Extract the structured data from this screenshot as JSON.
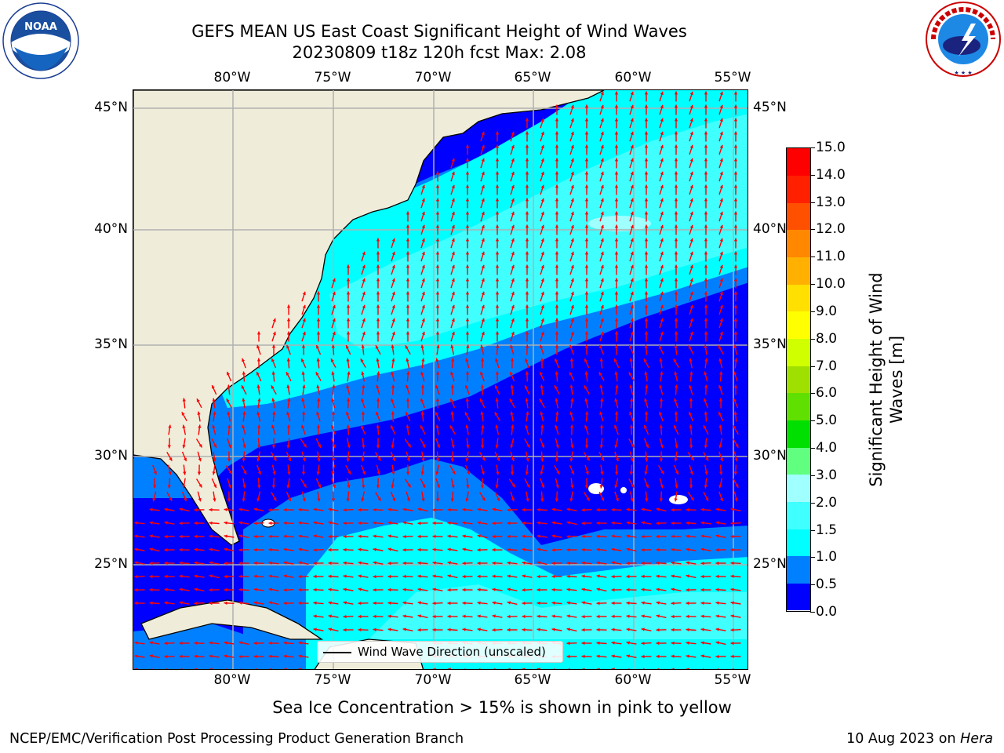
{
  "title": {
    "line1": "GEFS MEAN US East Coast Significant Height of Wind Waves",
    "line2": "20230809 t18z 120h fcst   Max: 2.08"
  },
  "map": {
    "lon_labels": [
      "80°W",
      "75°W",
      "70°W",
      "65°W",
      "60°W",
      "55°W"
    ],
    "lat_labels": [
      "45°N",
      "40°N",
      "35°N",
      "30°N",
      "25°N"
    ],
    "legend_label": "Wind Wave Direction (unscaled)",
    "colors": {
      "land": "#efedda",
      "arrow": "#ff0000",
      "grid": "#b0b0b0",
      "coast": "#000000"
    },
    "max_value": 2.08,
    "lon_range": [
      -85,
      -54.2
    ],
    "lat_range": [
      20.5,
      45.8
    ]
  },
  "colorbar": {
    "label": "Significant Height of Wind Waves [m]",
    "label_lines": [
      "Significant Height of Wind",
      "Waves [m]"
    ],
    "ticks": [
      "0.0",
      "0.5",
      "1.0",
      "1.5",
      "2.0",
      "3.0",
      "4.0",
      "5.0",
      "6.0",
      "7.0",
      "8.0",
      "9.0",
      "10.0",
      "11.0",
      "12.0",
      "13.0",
      "14.0",
      "15.0"
    ],
    "colors": [
      "#0000ff",
      "#0080ff",
      "#00ffff",
      "#40ffff",
      "#a0ffff",
      "#60ff80",
      "#00e000",
      "#60e000",
      "#a0e000",
      "#d0ff00",
      "#ffff00",
      "#ffe000",
      "#ffb000",
      "#ff8800",
      "#ff5000",
      "#ff2000",
      "#ff0000"
    ]
  },
  "footer": {
    "note": "Sea Ice Concentration > 15% is shown in pink to yellow",
    "left": "NCEP/EMC/Verification Post Processing Product Generation Branch",
    "right_prefix": "10 Aug 2023 on",
    "right_host": "Hera"
  },
  "logos": {
    "noaa": "NOAA",
    "nws": "NATIONAL WEATHER SERVICE"
  }
}
